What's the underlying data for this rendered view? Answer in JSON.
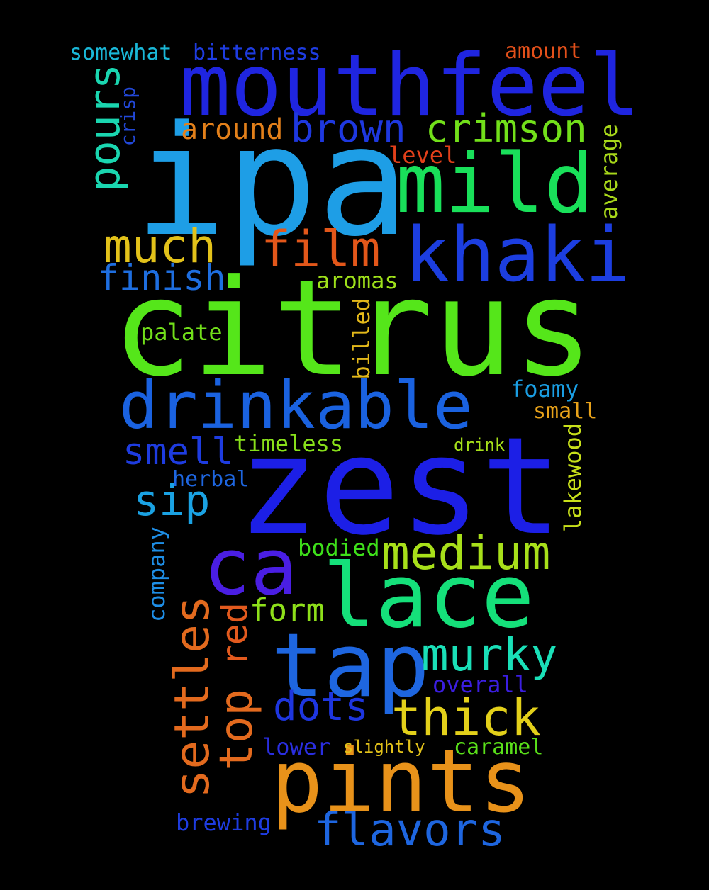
{
  "words": [
    {
      "text": "mouthfeel",
      "color": "#1f25e0"
    },
    {
      "text": "ipa",
      "color": "#1e9ee6"
    },
    {
      "text": "mild",
      "color": "#19e05a"
    },
    {
      "text": "khaki",
      "color": "#1c3ee0"
    },
    {
      "text": "citrus",
      "color": "#55e61a"
    },
    {
      "text": "drinkable",
      "color": "#1a62e0"
    },
    {
      "text": "zest",
      "color": "#1c1fe6"
    },
    {
      "text": "ca",
      "color": "#4a1ee3"
    },
    {
      "text": "lace",
      "color": "#15e07a"
    },
    {
      "text": "tap",
      "color": "#1e66e0"
    },
    {
      "text": "pints",
      "color": "#e8921a"
    },
    {
      "text": "medium",
      "color": "#a8e01a"
    },
    {
      "text": "thick",
      "color": "#e3d01a"
    },
    {
      "text": "murky",
      "color": "#1ae0b8"
    },
    {
      "text": "settles",
      "color": "#e36a1e"
    },
    {
      "text": "top",
      "color": "#e36a1e"
    },
    {
      "text": "red",
      "color": "#e35a1e"
    },
    {
      "text": "film",
      "color": "#e3571a"
    },
    {
      "text": "much",
      "color": "#e3c21a"
    },
    {
      "text": "pours",
      "color": "#1ad6b0"
    },
    {
      "text": "crimson",
      "color": "#72e01a"
    },
    {
      "text": "brown",
      "color": "#1e38e0"
    },
    {
      "text": "around",
      "color": "#e3801a"
    },
    {
      "text": "finish",
      "color": "#1e6ee0"
    },
    {
      "text": "smell",
      "color": "#1e3ce0"
    },
    {
      "text": "sip",
      "color": "#1aa2e3"
    },
    {
      "text": "dots",
      "color": "#1e36e0"
    },
    {
      "text": "flavors",
      "color": "#1e66e0"
    },
    {
      "text": "form",
      "color": "#8ee01a"
    },
    {
      "text": "somewhat",
      "color": "#1ab8d8"
    },
    {
      "text": "bitterness",
      "color": "#1e3ce0"
    },
    {
      "text": "amount",
      "color": "#e3501a"
    },
    {
      "text": "crisp",
      "color": "#2248d8"
    },
    {
      "text": "level",
      "color": "#e3401a"
    },
    {
      "text": "average",
      "color": "#a8d81a"
    },
    {
      "text": "aromas",
      "color": "#9ee01a"
    },
    {
      "text": "palate",
      "color": "#72e01a"
    },
    {
      "text": "billed",
      "color": "#e3b81a"
    },
    {
      "text": "foamy",
      "color": "#1a9ee3"
    },
    {
      "text": "small",
      "color": "#e8a21a"
    },
    {
      "text": "timeless",
      "color": "#88e01a"
    },
    {
      "text": "drink",
      "color": "#a6e01a"
    },
    {
      "text": "lakewood",
      "color": "#c8e01a"
    },
    {
      "text": "herbal",
      "color": "#1e66e0"
    },
    {
      "text": "company",
      "color": "#1e8ee6"
    },
    {
      "text": "bodied",
      "color": "#3ee01a"
    },
    {
      "text": "overall",
      "color": "#3b1ee0"
    },
    {
      "text": "lower",
      "color": "#2a2ee0"
    },
    {
      "text": "slightly",
      "color": "#e3c21a"
    },
    {
      "text": "caramel",
      "color": "#5ae01a"
    },
    {
      "text": "brewing",
      "color": "#1e3ce0"
    }
  ]
}
